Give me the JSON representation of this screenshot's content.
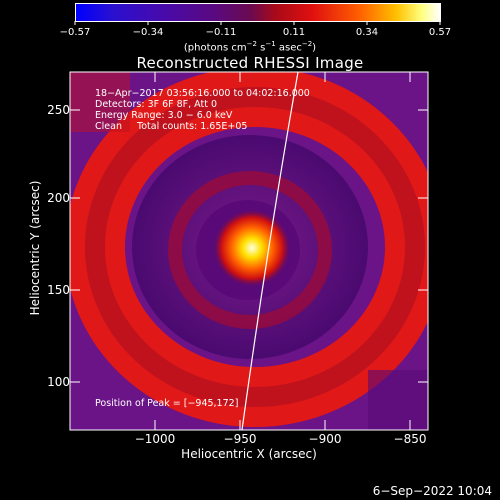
{
  "colorbar": {
    "ticks": [
      "−0.57",
      "−0.34",
      "−0.11",
      "0.11",
      "0.34",
      "0.57"
    ],
    "units_prefix": "(photons cm",
    "units_exp1": "−2",
    "units_mid": " s",
    "units_exp2": "−1",
    "units_mid2": " asec",
    "units_exp3": "−2",
    "units_suffix": ")"
  },
  "title": "Reconstructed RHESSI Image",
  "info": {
    "line1": "18−Apr−2017 03:56:16.000 to 04:02:16.000",
    "line2": "Detectors: 3F 6F 8F, Att 0",
    "line3": "Energy Range: 3.0 − 6.0 keV",
    "line4": "Clean     Total counts: 1.65E+05"
  },
  "peak_text": "Position of Peak = [−945,172]",
  "axes": {
    "xlabel": "Heliocentric X (arcsec)",
    "ylabel": "Heliocentric Y (arcsec)",
    "xticks": [
      "−1000",
      "−950",
      "−900",
      "−850"
    ],
    "yticks": [
      "250",
      "200",
      "150",
      "100"
    ]
  },
  "footer": "6−Sep−2022 10:04"
}
